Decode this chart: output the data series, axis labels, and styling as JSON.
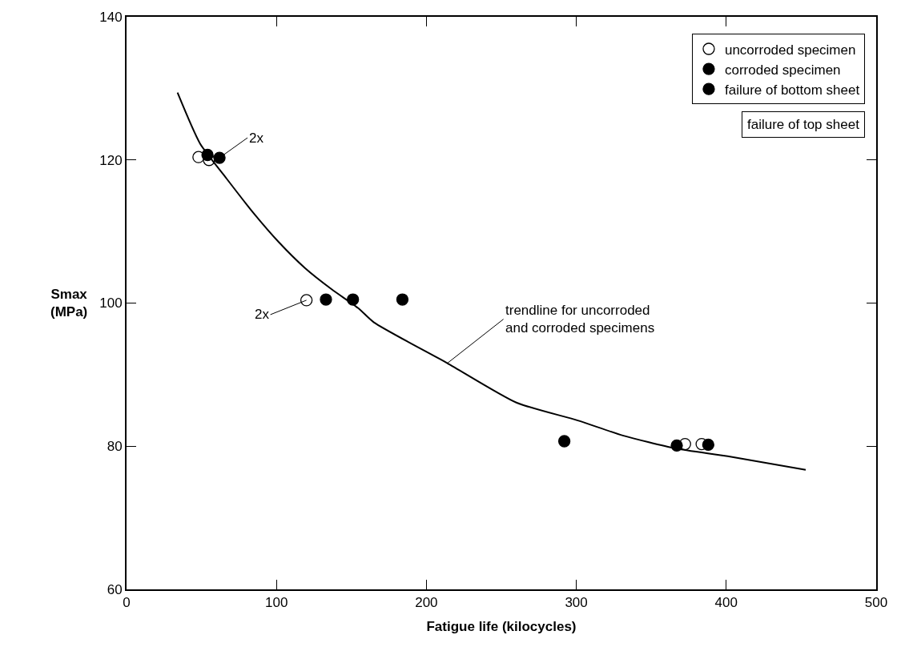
{
  "chart_data": {
    "type": "scatter",
    "xlabel": "Fatigue life (kilocycles)",
    "ylabel": "Smax\n(MPa)",
    "xlim": [
      0,
      500
    ],
    "xticks": [
      0,
      100,
      200,
      300,
      400,
      500
    ],
    "ylim": [
      60,
      140
    ],
    "yticks": [
      60,
      80,
      100,
      120,
      140
    ],
    "legend": "top right",
    "marker": "circle",
    "series": [
      {
        "name": "uncorroded specimen",
        "color": "#ffffff",
        "x": [
          48,
          55,
          120,
          372.5,
          383.6
        ],
        "values": [
          120.4,
          120.0,
          100.4,
          80.3,
          80.3
        ]
      },
      {
        "name": "corroded specimen",
        "color": "#000000",
        "x": [
          54,
          62,
          133,
          151,
          184,
          367,
          388
        ],
        "values": [
          120.7,
          120.3,
          100.5,
          100.5,
          100.5,
          80.1,
          80.2
        ]
      },
      {
        "name": "failure of bottom sheet",
        "color": "#000000",
        "x": [
          292
        ],
        "values": [
          80.7
        ]
      },
      {
        "type": "line",
        "color": "#000000",
        "line_style": "solid",
        "marker": "none",
        "x": [
          34,
          49,
          66.7,
          84.6,
          101.6,
          119,
          137,
          154.5,
          165,
          214,
          260,
          301,
          331,
          366,
          401,
          453
        ],
        "values": [
          129.4,
          122.3,
          117.4,
          112.6,
          108.5,
          104.9,
          101.9,
          99.3,
          97.3,
          91.6,
          86.1,
          83.6,
          81.5,
          79.7,
          78.6,
          76.7
        ]
      }
    ],
    "annotations": [
      {
        "text": "2x",
        "x": 62,
        "y": 120.3
      },
      {
        "text": "2x",
        "x": 120,
        "y": 100.4
      },
      {
        "text": "trendline for uncorroded\nand corroded specimens",
        "x": 214,
        "y": 91.6
      },
      "failure of top sheet"
    ]
  }
}
